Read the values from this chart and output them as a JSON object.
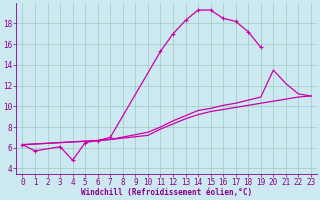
{
  "xlabel": "Windchill (Refroidissement éolien,°C)",
  "bg_color": "#cce8f0",
  "grid_color": "#99ccbb",
  "line_color": "#cc00aa",
  "xlim": [
    -0.5,
    23.5
  ],
  "ylim": [
    3.5,
    20.0
  ],
  "xticks": [
    0,
    1,
    2,
    3,
    4,
    5,
    6,
    7,
    8,
    9,
    10,
    11,
    12,
    13,
    14,
    15,
    16,
    17,
    18,
    19,
    20,
    21,
    22,
    23
  ],
  "yticks": [
    4,
    6,
    8,
    10,
    12,
    14,
    16,
    18
  ],
  "curve1_x": [
    0,
    1,
    3,
    4,
    5,
    6,
    7,
    11,
    12,
    13,
    14,
    15,
    16,
    17,
    18,
    19
  ],
  "curve1_y": [
    6.3,
    5.7,
    6.1,
    4.8,
    6.5,
    6.7,
    7.0,
    15.3,
    17.0,
    18.3,
    19.3,
    19.3,
    18.5,
    18.2,
    17.2,
    15.7
  ],
  "curve2_x": [
    0,
    6,
    7,
    10,
    11,
    12,
    13,
    14,
    15,
    16,
    17,
    18,
    19,
    20,
    21,
    22,
    23
  ],
  "curve2_y": [
    6.3,
    6.7,
    6.8,
    7.2,
    7.8,
    8.3,
    8.8,
    9.2,
    9.5,
    9.7,
    9.9,
    10.1,
    10.3,
    10.5,
    10.7,
    10.9,
    11.0
  ],
  "curve3_x": [
    0,
    6,
    7,
    10,
    11,
    12,
    13,
    14,
    15,
    16,
    17,
    18,
    19,
    20,
    21,
    22,
    23
  ],
  "curve3_y": [
    6.3,
    6.7,
    6.8,
    7.5,
    8.0,
    8.6,
    9.1,
    9.6,
    9.8,
    10.1,
    10.3,
    10.6,
    10.9,
    13.5,
    12.2,
    11.2,
    11.0
  ],
  "tick_color": "#880088",
  "tick_fontsize": 5.5,
  "xlabel_fontsize": 5.5,
  "linewidth": 0.9
}
